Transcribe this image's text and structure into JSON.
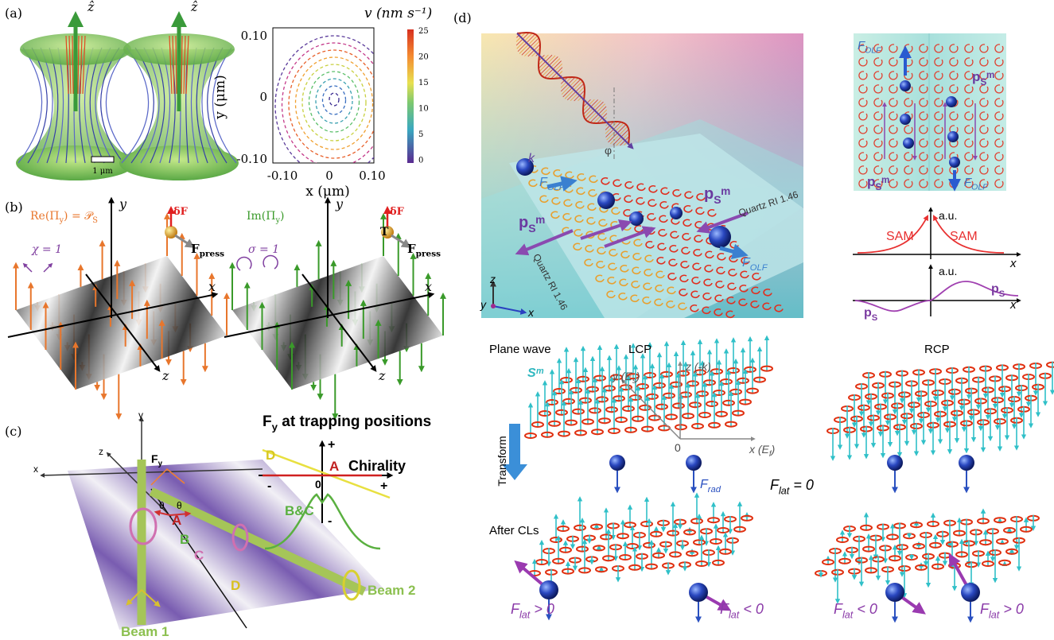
{
  "panel_a": {
    "label": "(a)",
    "z_hat_left": "ẑ",
    "z_hat_right": "ẑ",
    "scale_bar": "1 μm",
    "colorbar_title": "v (nm s⁻¹)",
    "colorbar_ticks": [
      "25",
      "20",
      "15",
      "10",
      "5",
      "0"
    ],
    "y_ticks": [
      "0.10",
      "0",
      "-0.10"
    ],
    "x_ticks": [
      "-0.10",
      "0",
      "0.10"
    ],
    "y_label": "y (μm)",
    "x_label": "x (μm)"
  },
  "panel_b": {
    "label": "(b)",
    "left": {
      "pi": [
        "Re(Π",
        "y",
        ") = 𝒫",
        "S"
      ],
      "polarization": "χ = 1",
      "delta_f": "δF",
      "force": [
        "F",
        "press"
      ],
      "y_axis": "y",
      "x_axis": "x",
      "z_axis": "z"
    },
    "right": {
      "pi": [
        "Im(Π",
        "y",
        ")"
      ],
      "polarization": "σ = 1",
      "torque": "T",
      "delta_f": "δF",
      "force": [
        "F",
        "press"
      ],
      "y_axis": "y",
      "x_axis": "x",
      "z_axis": "z"
    }
  },
  "panel_c": {
    "label": "(c)",
    "axes": {
      "y": "y",
      "z": "z",
      "x": "x"
    },
    "force": [
      "F",
      "y"
    ],
    "angles": [
      "θ",
      "θ"
    ],
    "positions": [
      "A",
      "B",
      "C",
      "D"
    ],
    "beams": [
      "Beam 1",
      "Beam 2"
    ],
    "inset": {
      "title": [
        "F",
        "y",
        " at trapping positions"
      ],
      "top": "+",
      "bottom": "-",
      "left": "-",
      "right": "+",
      "origin": "0",
      "x_label": "Chirality",
      "curves": [
        "D",
        "A",
        "B&C"
      ]
    }
  },
  "panel_d": {
    "label": "(d)",
    "scene": {
      "wavevector": "k",
      "angle": "φ",
      "force_left": [
        "F",
        "OLF"
      ],
      "dipole_left": [
        "p",
        "S",
        "ᵐ"
      ],
      "dipole_right": [
        "p",
        "S",
        "ᵐ"
      ],
      "substrate_right": "Quartz RI 1.46",
      "substrate_left": "Quartz RI 1.46",
      "force_right": [
        "F",
        "OLF"
      ],
      "axes": [
        "z",
        "y",
        "x"
      ]
    },
    "inset": {
      "force_top": [
        "F",
        "OLF"
      ],
      "dipole_top": [
        "p",
        "S",
        "ᵐ"
      ],
      "dipole_bottom": [
        "p",
        "S",
        "ᵐ"
      ],
      "force_bottom": [
        "F",
        "OLF"
      ]
    },
    "sam_plot": {
      "y_label": "a.u.",
      "left": "SAM",
      "right": "SAM",
      "x_label": "x"
    },
    "dipole_plot": {
      "y_label": "a.u.",
      "right": [
        "p",
        "S"
      ],
      "left": [
        "p",
        "S"
      ],
      "x_label": "x"
    },
    "lattice": {
      "input": "Plane wave",
      "lcp": "LCP",
      "rcp": "RCP",
      "spin": "Sᵐ",
      "y_axis": [
        "y (E",
        "s",
        ")"
      ],
      "z_axis": "z (-k)",
      "origin": "0",
      "x_axis": [
        "x (E",
        "f",
        ")"
      ],
      "transform": "Transform",
      "force_rad": [
        "F",
        "rad"
      ],
      "force_none": [
        "F",
        "lat",
        " = 0"
      ],
      "output": "After CLs",
      "forces_out": [
        [
          "F",
          "lat",
          " > 0"
        ],
        [
          "F",
          "lat",
          " < 0"
        ],
        [
          "F",
          "lat",
          " < 0"
        ],
        [
          "F",
          "lat",
          " > 0"
        ]
      ]
    }
  }
}
